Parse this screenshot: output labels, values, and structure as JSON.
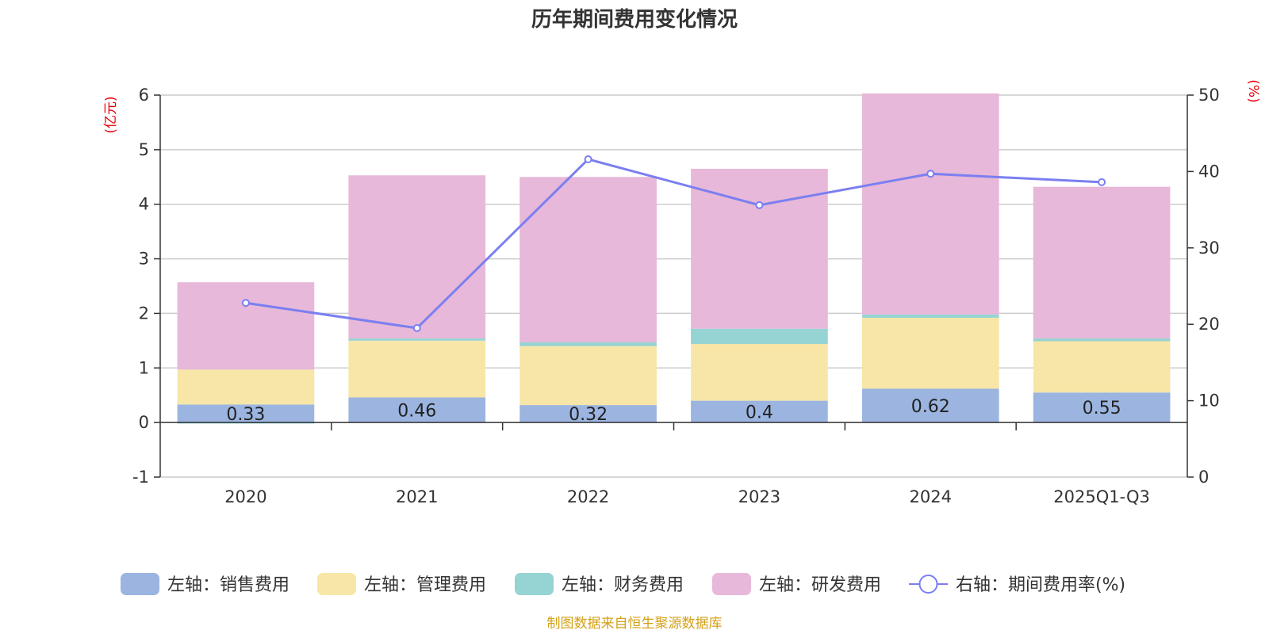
{
  "chart_data": {
    "type": "bar",
    "stacked": true,
    "title": "历年期间费用变化情况",
    "left_axis_unit": "(亿元)",
    "right_axis_unit": "(%)",
    "left_ylim": [
      -1,
      6
    ],
    "left_ticks": [
      -1,
      0,
      1,
      2,
      3,
      4,
      5,
      6
    ],
    "right_ylim": [
      0,
      50
    ],
    "right_ticks": [
      0,
      10,
      20,
      30,
      40,
      50
    ],
    "categories": [
      "2020",
      "2021",
      "2022",
      "2023",
      "2024",
      "2025Q1-Q3"
    ],
    "series": [
      {
        "name": "左轴：销售费用",
        "axis": "left",
        "color": "#9bb5e0",
        "values": [
          0.33,
          0.46,
          0.32,
          0.4,
          0.62,
          0.55
        ],
        "labels": [
          "0.33",
          "0.46",
          "0.32",
          "0.4",
          "0.62",
          "0.55"
        ]
      },
      {
        "name": "左轴：管理费用",
        "axis": "left",
        "color": "#f7e6a8",
        "values": [
          0.64,
          1.04,
          1.08,
          1.04,
          1.3,
          0.94
        ]
      },
      {
        "name": "左轴：财务费用",
        "axis": "left",
        "color": "#96d3d3",
        "values": [
          -0.02,
          0.04,
          0.07,
          0.28,
          0.06,
          0.05
        ]
      },
      {
        "name": "左轴：研发费用",
        "axis": "left",
        "color": "#e7b8d9",
        "values": [
          1.6,
          2.99,
          3.03,
          2.93,
          4.05,
          2.78
        ]
      }
    ],
    "line": {
      "name": "右轴：期间费用率(%)",
      "axis": "right",
      "color": "#7b7ff0",
      "values": [
        22.8,
        19.5,
        41.6,
        35.6,
        39.7,
        38.6
      ]
    },
    "source": "制图数据来自恒生聚源数据库"
  }
}
